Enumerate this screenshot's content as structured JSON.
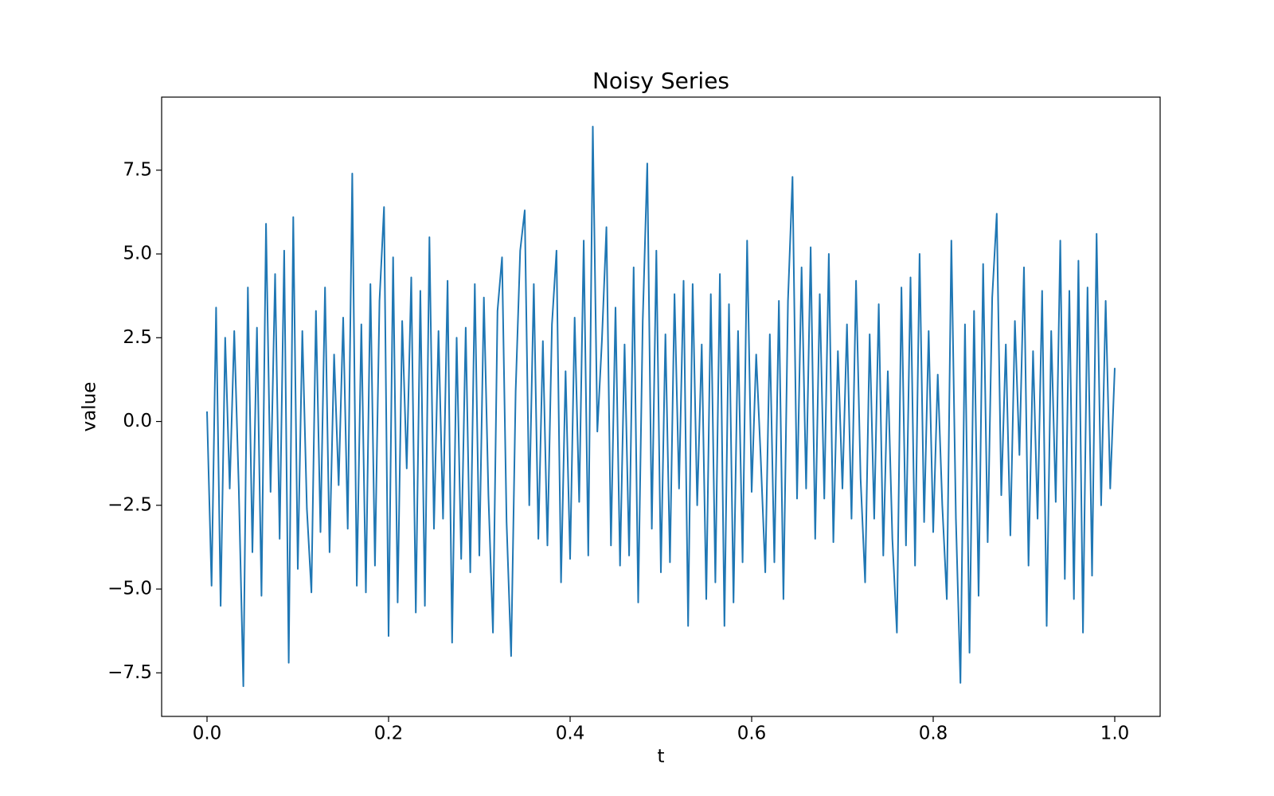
{
  "chart_data": {
    "type": "line",
    "title": "Noisy Series",
    "x_label": "t",
    "y_label": "value",
    "x": [
      0.0,
      0.005,
      0.01,
      0.015,
      0.02,
      0.025,
      0.03,
      0.035,
      0.04,
      0.045,
      0.05,
      0.055,
      0.06,
      0.065,
      0.07,
      0.075,
      0.08,
      0.085,
      0.09,
      0.095,
      0.1,
      0.105,
      0.11,
      0.115,
      0.12,
      0.125,
      0.13,
      0.135,
      0.14,
      0.145,
      0.15,
      0.155,
      0.16,
      0.165,
      0.17,
      0.175,
      0.18,
      0.185,
      0.19,
      0.195,
      0.2,
      0.205,
      0.21,
      0.215,
      0.22,
      0.225,
      0.23,
      0.235,
      0.24,
      0.245,
      0.25,
      0.255,
      0.26,
      0.265,
      0.27,
      0.275,
      0.28,
      0.285,
      0.29,
      0.295,
      0.3,
      0.305,
      0.31,
      0.315,
      0.32,
      0.325,
      0.33,
      0.335,
      0.34,
      0.345,
      0.35,
      0.355,
      0.36,
      0.365,
      0.37,
      0.375,
      0.38,
      0.385,
      0.39,
      0.395,
      0.4,
      0.405,
      0.41,
      0.415,
      0.42,
      0.425,
      0.43,
      0.435,
      0.44,
      0.445,
      0.45,
      0.455,
      0.46,
      0.465,
      0.47,
      0.475,
      0.48,
      0.485,
      0.49,
      0.495,
      0.5,
      0.505,
      0.51,
      0.515,
      0.52,
      0.525,
      0.53,
      0.535,
      0.54,
      0.545,
      0.55,
      0.555,
      0.56,
      0.565,
      0.57,
      0.575,
      0.58,
      0.585,
      0.59,
      0.595,
      0.6,
      0.605,
      0.61,
      0.615,
      0.62,
      0.625,
      0.63,
      0.635,
      0.64,
      0.645,
      0.65,
      0.655,
      0.66,
      0.665,
      0.67,
      0.675,
      0.68,
      0.685,
      0.69,
      0.695,
      0.7,
      0.705,
      0.71,
      0.715,
      0.72,
      0.725,
      0.73,
      0.735,
      0.74,
      0.745,
      0.75,
      0.755,
      0.76,
      0.765,
      0.77,
      0.775,
      0.78,
      0.785,
      0.79,
      0.795,
      0.8,
      0.805,
      0.81,
      0.815,
      0.82,
      0.825,
      0.83,
      0.835,
      0.84,
      0.845,
      0.85,
      0.855,
      0.86,
      0.865,
      0.87,
      0.875,
      0.88,
      0.885,
      0.89,
      0.895,
      0.9,
      0.905,
      0.91,
      0.915,
      0.92,
      0.925,
      0.93,
      0.935,
      0.94,
      0.945,
      0.95,
      0.955,
      0.96,
      0.965,
      0.97,
      0.975,
      0.98,
      0.985,
      0.99,
      0.995,
      1.0
    ],
    "series": [
      {
        "name": "value",
        "color": "#1f77b4",
        "values": [
          0.3,
          -4.9,
          3.4,
          -5.5,
          2.5,
          -2.0,
          2.7,
          -2.0,
          -7.9,
          4.0,
          -3.9,
          2.8,
          -5.2,
          5.9,
          -2.1,
          4.4,
          -3.5,
          5.1,
          -7.2,
          6.1,
          -4.4,
          2.7,
          -2.6,
          -5.1,
          3.3,
          -3.3,
          4.0,
          -3.9,
          2.0,
          -1.9,
          3.1,
          -3.2,
          7.4,
          -4.9,
          2.9,
          -5.1,
          4.1,
          -4.3,
          3.6,
          6.4,
          -6.4,
          4.9,
          -5.4,
          3.0,
          -1.4,
          4.3,
          -5.7,
          3.9,
          -5.5,
          5.5,
          -3.2,
          2.7,
          -2.9,
          4.2,
          -6.6,
          2.5,
          -4.1,
          2.8,
          -4.5,
          4.1,
          -4.0,
          3.7,
          -2.2,
          -6.3,
          3.3,
          4.9,
          -3.0,
          -7.0,
          0.9,
          5.1,
          6.3,
          -2.5,
          4.1,
          -3.5,
          2.4,
          -3.7,
          2.9,
          5.1,
          -4.8,
          1.5,
          -4.1,
          3.1,
          -2.4,
          5.4,
          -4.0,
          8.8,
          -0.3,
          2.4,
          5.8,
          -3.7,
          3.4,
          -4.3,
          2.3,
          -4.0,
          4.6,
          -5.4,
          3.0,
          7.7,
          -3.2,
          5.1,
          -4.5,
          2.6,
          -4.2,
          3.8,
          -2.0,
          4.2,
          -6.1,
          4.1,
          -2.5,
          2.3,
          -5.3,
          3.8,
          -4.8,
          4.4,
          -6.1,
          3.5,
          -5.4,
          2.7,
          -4.2,
          5.4,
          -2.1,
          2.0,
          -1.1,
          -4.5,
          2.6,
          -4.2,
          3.6,
          -5.3,
          3.6,
          7.3,
          -2.3,
          4.6,
          -2.0,
          5.2,
          -3.5,
          3.8,
          -2.3,
          5.0,
          -3.6,
          2.1,
          -2.0,
          2.9,
          -2.9,
          4.2,
          -1.7,
          -4.8,
          2.6,
          -2.9,
          3.5,
          -4.0,
          1.5,
          -3.5,
          -6.3,
          4.0,
          -3.7,
          4.3,
          -4.3,
          5.0,
          -3.0,
          2.7,
          -3.3,
          1.4,
          -2.5,
          -5.3,
          5.4,
          -2.9,
          -7.8,
          2.9,
          -6.9,
          3.3,
          -5.2,
          4.7,
          -3.6,
          3.7,
          6.2,
          -2.2,
          2.3,
          -3.4,
          3.0,
          -1.0,
          4.6,
          -4.3,
          2.1,
          -2.9,
          3.9,
          -6.1,
          2.7,
          -2.4,
          5.4,
          -4.7,
          3.9,
          -5.3,
          4.8,
          -6.3,
          4.0,
          -4.6,
          5.6,
          -2.5,
          3.6,
          -2.0,
          1.6
        ]
      }
    ],
    "xlim": [
      -0.05,
      1.05
    ],
    "ylim": [
      -8.8,
      9.68
    ],
    "xticks": [
      {
        "value": 0,
        "label": "0.0"
      },
      0.2,
      0.4,
      0.6,
      0.8,
      {
        "value": 1,
        "label": "1.0"
      }
    ],
    "yticks": [
      {
        "value": -7.5,
        "label": "−7.5"
      },
      {
        "value": -5,
        "label": "−5.0"
      },
      {
        "value": -2.5,
        "label": "−2.5"
      },
      {
        "value": 0,
        "label": "0.0"
      },
      2.5,
      {
        "value": 5,
        "label": "5.0"
      },
      7.5
    ],
    "grid": false
  }
}
